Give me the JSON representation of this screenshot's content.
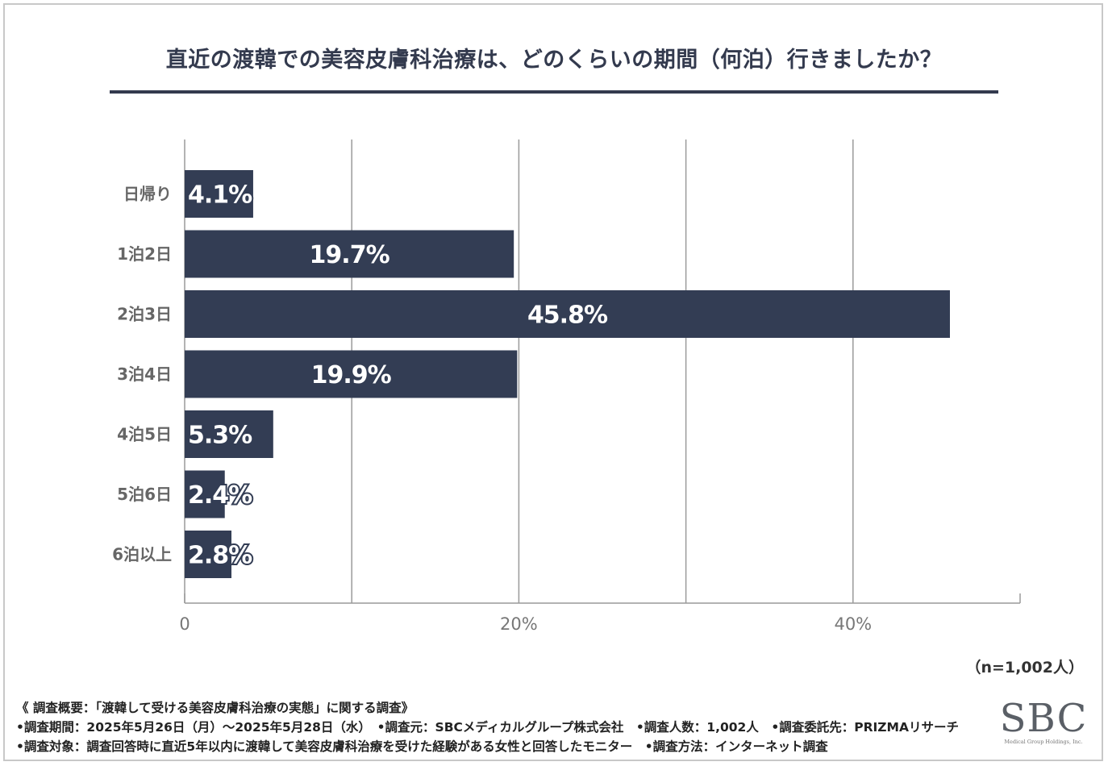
{
  "chart_data": {
    "type": "bar",
    "orientation": "horizontal",
    "title": "直近の渡韓での美容皮膚科治療は、どのくらいの期間（何泊）行きましたか？",
    "categories": [
      "日帰り",
      "1泊2日",
      "2泊3日",
      "3泊4日",
      "4泊5日",
      "5泊6日",
      "6泊以上"
    ],
    "values": [
      4.1,
      19.7,
      45.8,
      19.9,
      5.3,
      2.4,
      2.8
    ],
    "value_labels": [
      "4.1%",
      "19.7%",
      "45.8%",
      "19.9%",
      "5.3%",
      "2.4%",
      "2.8%"
    ],
    "xlim": [
      0,
      50
    ],
    "xticks": [
      0,
      20,
      40
    ],
    "xtick_labels": [
      "0",
      "20%",
      "40%"
    ],
    "gridlines": [
      0,
      10,
      20,
      30,
      40
    ],
    "bar_color": "#333d54",
    "grid_color": "#9a9a9a"
  },
  "sample_size": "（n=1,002人）",
  "notes": [
    "《 調査概要：「渡韓して受ける美容皮膚科治療の実態」に関する調査》",
    "•調査期間：2025年5月26日（月）～2025年5月28日（水）　•調査元：SBCメディカルグループ株式会社　•調査人数：1,002人　•調査委託先：PRIZMAリサーチ",
    "•調査対象：調査回答時に直近5年以内に渡韓して美容皮膚科治療を受けた経験がある女性と回答したモニター　•調査方法：インターネット調査"
  ],
  "logo": {
    "text": "SBC",
    "subtext": "Medical Group Holdings, Inc."
  }
}
